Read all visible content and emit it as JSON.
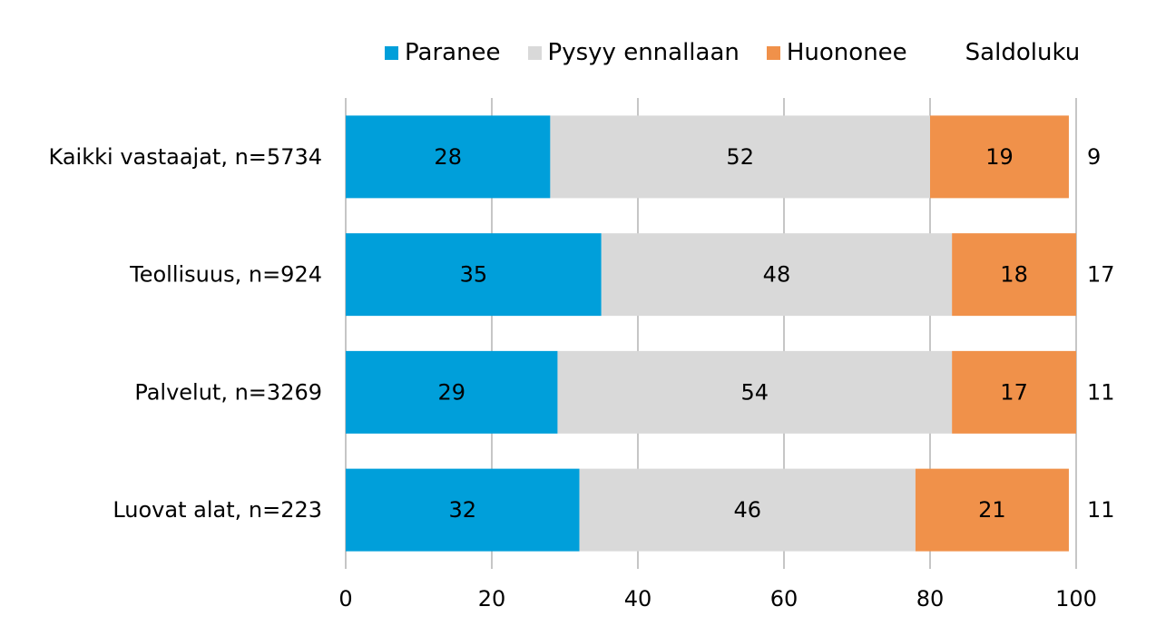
{
  "chart_data": {
    "type": "bar",
    "orientation": "horizontal",
    "stacked": true,
    "categories": [
      "Kaikki vastaajat, n=5734",
      "Teollisuus, n=924",
      "Palvelut, n=3269",
      "Luovat alat, n=223"
    ],
    "series": [
      {
        "name": "Paranee",
        "color": "#009fda",
        "values": [
          28,
          35,
          29,
          32
        ]
      },
      {
        "name": "Pysyy ennallaan",
        "color": "#d9d9d9",
        "values": [
          52,
          48,
          54,
          46
        ]
      },
      {
        "name": "Huononee",
        "color": "#f0914a",
        "values": [
          19,
          18,
          17,
          21
        ]
      }
    ],
    "saldo": {
      "name": "Saldoluku",
      "values": [
        9,
        17,
        11,
        11
      ]
    },
    "xlim": [
      0,
      100
    ],
    "xticks": [
      0,
      20,
      40,
      60,
      80,
      100
    ],
    "grid": "vertical",
    "legend_position": "top"
  }
}
